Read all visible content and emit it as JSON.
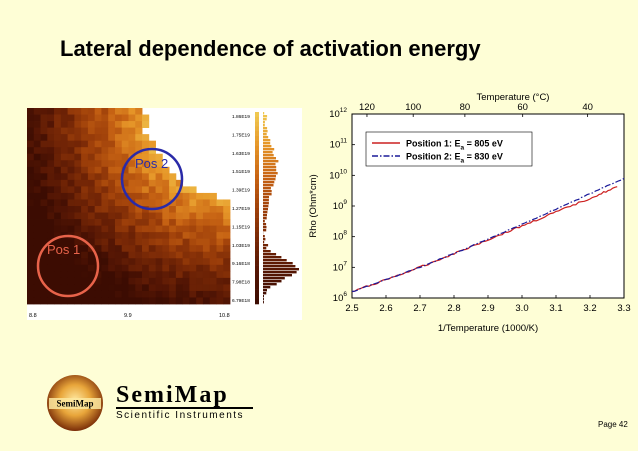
{
  "slide": {
    "title": "Lateral dependence of activation energy",
    "page": "Page 42"
  },
  "heatmap": {
    "colorbar_ticks": [
      "1.86E19",
      "1.75E19",
      "1.63E19",
      "1.51E19",
      "1.39E19",
      "1.27E19",
      "1.15E19",
      "1.03E19",
      "9.16E18",
      "7.98E18",
      "6.79E18"
    ],
    "x_ticks": [
      "8.8",
      "9.9",
      "10.8"
    ],
    "pos1_label": "Pos 1",
    "pos2_label": "Pos 2",
    "pos1_color": "#e8634a",
    "pos2_color": "#2a2aa8"
  },
  "chart_data": {
    "type": "line",
    "xlabel": "1/Temperature (1000/K)",
    "ylabel": "Rho (Ohm*cm)",
    "top_xlabel": "Temperature (°C)",
    "xlim": [
      2.5,
      3.3
    ],
    "ylim_log10": [
      6,
      12
    ],
    "y_scale": "log",
    "x_ticks": [
      "2.5",
      "2.6",
      "2.7",
      "2.8",
      "2.9",
      "3.0",
      "3.1",
      "3.2",
      "3.3"
    ],
    "y_ticks": [
      {
        "base": "10",
        "exp": "6"
      },
      {
        "base": "10",
        "exp": "7"
      },
      {
        "base": "10",
        "exp": "8"
      },
      {
        "base": "10",
        "exp": "9"
      },
      {
        "base": "10",
        "exp": "10"
      },
      {
        "base": "10",
        "exp": "11"
      },
      {
        "base": "10",
        "exp": "12"
      }
    ],
    "top_ticks": [
      {
        "label": "120",
        "x": 2.544
      },
      {
        "label": "100",
        "x": 2.68
      },
      {
        "label": "80",
        "x": 2.832
      },
      {
        "label": "60",
        "x": 3.002
      },
      {
        "label": "40",
        "x": 3.193
      }
    ],
    "legend_position": "top-left",
    "series": [
      {
        "name": "Position 1: E",
        "sub": "a",
        "value": " = 805 eV",
        "color": "#cc2020",
        "dash": "solid",
        "x": [
          2.5,
          2.6,
          2.7,
          2.8,
          2.9,
          3.0,
          3.1,
          3.2,
          3.28
        ],
        "log10_y": [
          6.2,
          6.6,
          7.0,
          7.45,
          7.9,
          8.35,
          8.8,
          9.25,
          9.63
        ]
      },
      {
        "name": "Position 2: E",
        "sub": "a",
        "value": " = 830 eV",
        "color": "#1a1a99",
        "dash": "dashdot",
        "x": [
          2.5,
          2.6,
          2.7,
          2.8,
          2.9,
          3.0,
          3.1,
          3.2,
          3.3
        ],
        "log10_y": [
          6.2,
          6.6,
          7.0,
          7.45,
          7.92,
          8.4,
          8.9,
          9.4,
          9.9
        ]
      }
    ]
  },
  "logo": {
    "badge_text": "SemiMap",
    "name": "SemiMap",
    "tagline": "Scientific Instruments"
  }
}
